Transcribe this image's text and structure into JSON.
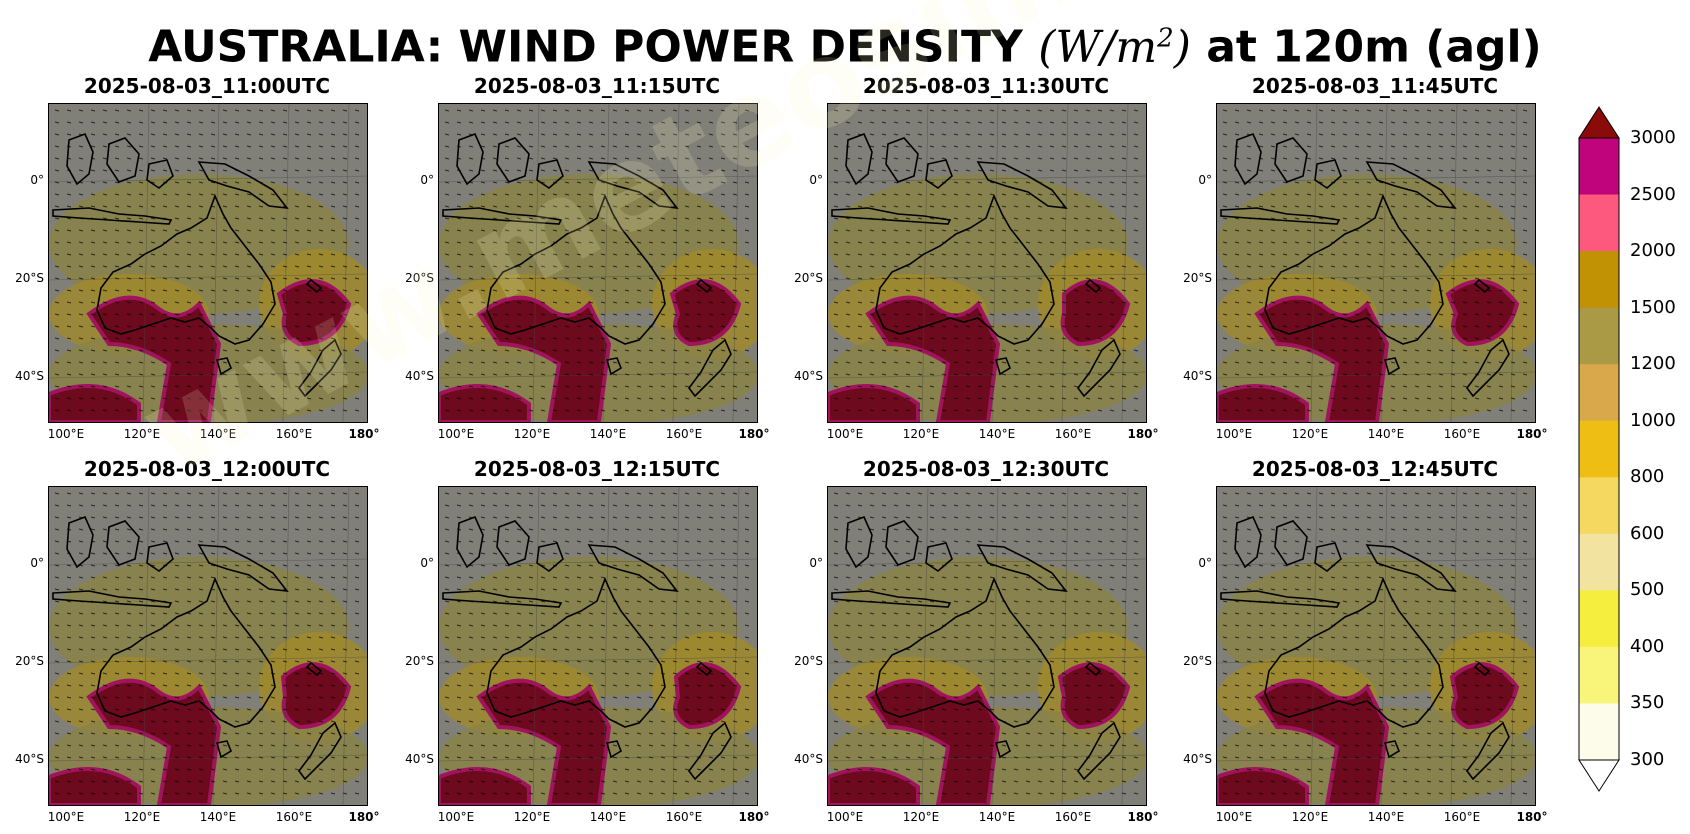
{
  "title": {
    "prefix": "AUSTRALIA: WIND POWER DENSITY ",
    "unit_w": "W",
    "unit_m": "m",
    "unit_exp": "2",
    "suffix": " at 120m (agl)"
  },
  "panels": [
    {
      "time": "2025-08-03_11:00UTC"
    },
    {
      "time": "2025-08-03_11:15UTC"
    },
    {
      "time": "2025-08-03_11:30UTC"
    },
    {
      "time": "2025-08-03_11:45UTC"
    },
    {
      "time": "2025-08-03_12:00UTC"
    },
    {
      "time": "2025-08-03_12:15UTC"
    },
    {
      "time": "2025-08-03_12:30UTC"
    },
    {
      "time": "2025-08-03_12:45UTC"
    }
  ],
  "lat_ticks": [
    "0°",
    "20°S",
    "40°S"
  ],
  "lon_ticks": [
    "100°E",
    "120°E",
    "140°E",
    "160°E",
    "180°"
  ],
  "colorbar": {
    "levels": [
      "300",
      "350",
      "400",
      "500",
      "600",
      "800",
      "1000",
      "1200",
      "1500",
      "2000",
      "2500",
      "3000"
    ],
    "colors": [
      "#fdfbea",
      "#f9f57a",
      "#f5ee3e",
      "#f2e3a0",
      "#f5d860",
      "#efbe15",
      "#d9a84a",
      "#aa9a45",
      "#c19204",
      "#fd587e",
      "#c0047c",
      "#8b0a0a"
    ],
    "under_color": "#ffffff",
    "over_color": "#8b0a0a"
  },
  "watermark": "www.meteosimulation.com",
  "map_colors": {
    "background": "#808078",
    "coast": "#000000",
    "low": "#8a8246",
    "mid": "#a08a2a",
    "high": "#6e0a1e",
    "edge": "#a0145e"
  }
}
